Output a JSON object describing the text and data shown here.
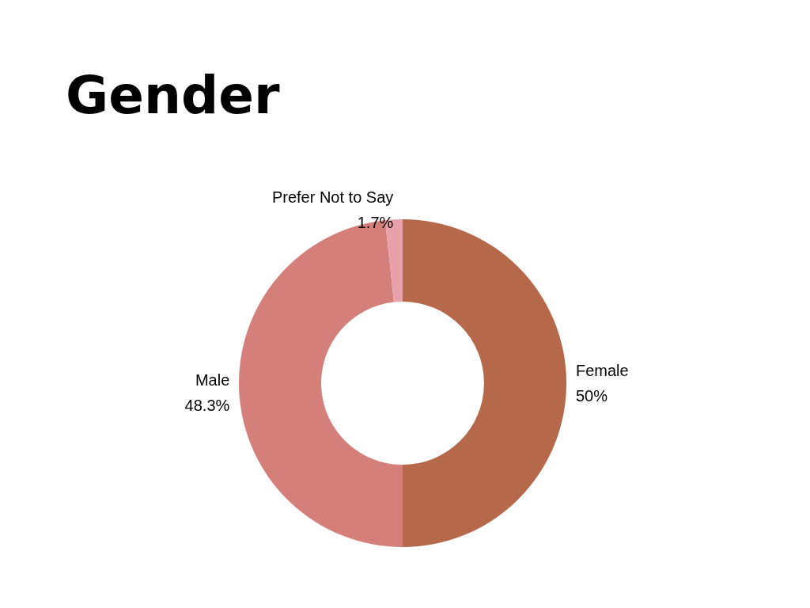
{
  "chart_data": {
    "type": "donut",
    "title": "Gender",
    "categories": [
      "Female",
      "Male",
      "Prefer Not to Say"
    ],
    "values": [
      50,
      48.3,
      1.7
    ],
    "value_labels": [
      "50%",
      "48.3%",
      "1.7%"
    ],
    "colors": [
      "#b5684a",
      "#d57f7b",
      "#e8a0ab"
    ],
    "legend": false
  }
}
